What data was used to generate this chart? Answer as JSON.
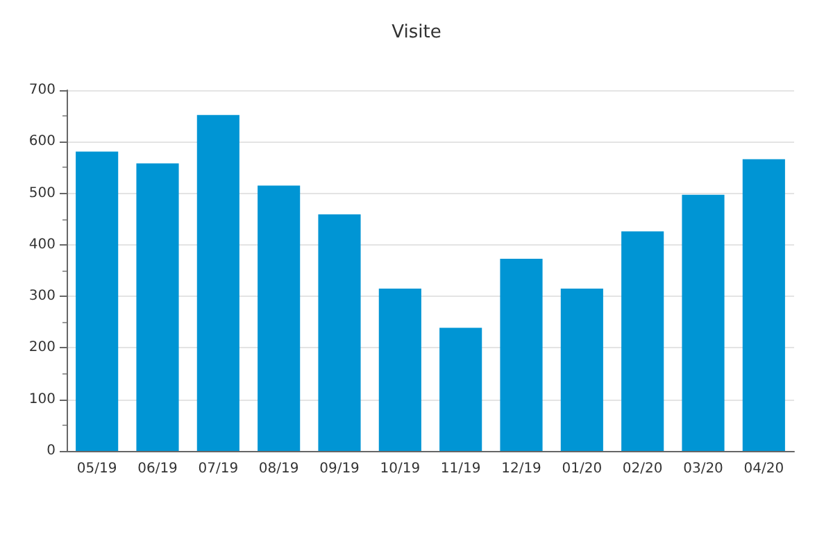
{
  "chart_data": {
    "type": "bar",
    "title": "Visite",
    "categories": [
      "05/19",
      "06/19",
      "07/19",
      "08/19",
      "09/19",
      "10/19",
      "11/19",
      "12/19",
      "01/20",
      "02/20",
      "03/20",
      "04/20"
    ],
    "values": [
      581,
      558,
      652,
      515,
      459,
      315,
      239,
      373,
      315,
      426,
      497,
      566
    ],
    "color": "#0095d4",
    "ylim": [
      0,
      700
    ],
    "yticks": [
      0,
      100,
      200,
      300,
      400,
      500,
      600,
      700
    ],
    "grid": "y"
  }
}
